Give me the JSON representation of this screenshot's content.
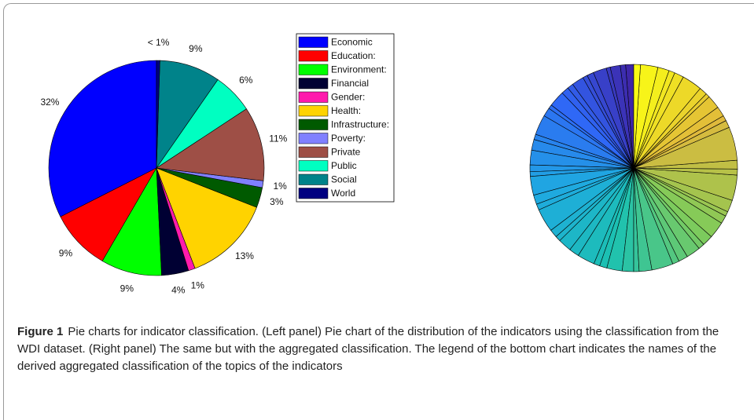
{
  "chart_data": [
    {
      "type": "pie",
      "categories": [
        "Economic",
        "Education:",
        "Environment:",
        "Financial",
        "Gender:",
        "Health:",
        "Infrastructure:",
        "Poverty:",
        "Private",
        "Public",
        "Social",
        "World"
      ],
      "values": [
        32,
        9,
        9,
        4,
        1,
        13,
        3,
        1,
        11,
        6,
        9,
        0.5
      ],
      "value_labels": [
        "32%",
        "9%",
        "9%",
        "4%",
        "1%",
        "13%",
        "3%",
        "1%",
        "11%",
        "6%",
        "9%",
        "< 1%"
      ],
      "colors": [
        "#0000ff",
        "#ff0000",
        "#00ff00",
        "#000033",
        "#ff1aad",
        "#ffd300",
        "#005a00",
        "#8080ff",
        "#9e4f46",
        "#00ffc1",
        "#00838a",
        "#000080"
      ],
      "legend": "right"
    },
    {
      "type": "pie",
      "values": [
        1.2,
        0.8,
        1.5,
        0.6,
        2.0,
        1.0,
        0.7,
        1.8,
        0.9,
        1.1,
        2.4,
        0.6,
        1.3,
        3.0,
        0.8,
        1.6,
        2.2,
        1.0,
        0.7,
        2.8,
        1.4,
        0.9,
        3.5,
        1.2,
        0.8,
        2.0,
        1.5,
        2.6,
        0.9,
        1.1,
        2.3,
        1.7,
        0.8,
        1.9,
        3.2,
        1.0,
        1.4,
        2.1,
        0.9,
        1.6,
        2.5,
        1.2,
        0.7,
        1.8,
        3.8,
        0.9,
        1.3,
        5.0,
        1.1,
        0.8,
        1.5,
        2.0,
        0.6,
        1.2,
        3.0,
        1.4,
        0.9,
        1.7,
        2.6,
        1.0
      ],
      "colormap": [
        "#3e26a8",
        "#2f67f6",
        "#1fa9e1",
        "#1cc1b1",
        "#7fcb5a",
        "#e1b93b",
        "#f9fb15"
      ]
    }
  ],
  "caption": {
    "label": "Figure 1",
    "text": "Pie charts for indicator classification. (Left panel) Pie chart of the distribution of the indicators using the classification from the WDI dataset. (Right panel) The same but with the aggregated classification. The legend of the bottom chart indicates the names of the derived aggregated classification of the topics of the indicators"
  }
}
